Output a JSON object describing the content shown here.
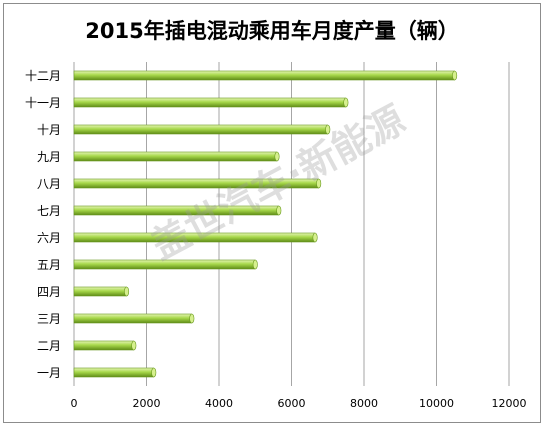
{
  "chart_data": {
    "type": "bar",
    "orientation": "horizontal",
    "title": "2015年插电混动乘用车月度产量（辆）",
    "categories": [
      "一月",
      "二月",
      "三月",
      "四月",
      "五月",
      "六月",
      "七月",
      "八月",
      "九月",
      "十月",
      "十一月",
      "十二月"
    ],
    "values": [
      2200,
      1650,
      3250,
      1450,
      5000,
      6650,
      5650,
      6750,
      5600,
      7000,
      7500,
      10500
    ],
    "xlim": [
      0,
      12000
    ],
    "xticks": [
      0,
      2000,
      4000,
      6000,
      8000,
      10000,
      12000
    ],
    "xlabel": "",
    "ylabel": "",
    "grid": true,
    "legend": "none",
    "bar_color": "#9ccc3c"
  },
  "watermark": "盖世汽车·新能源"
}
